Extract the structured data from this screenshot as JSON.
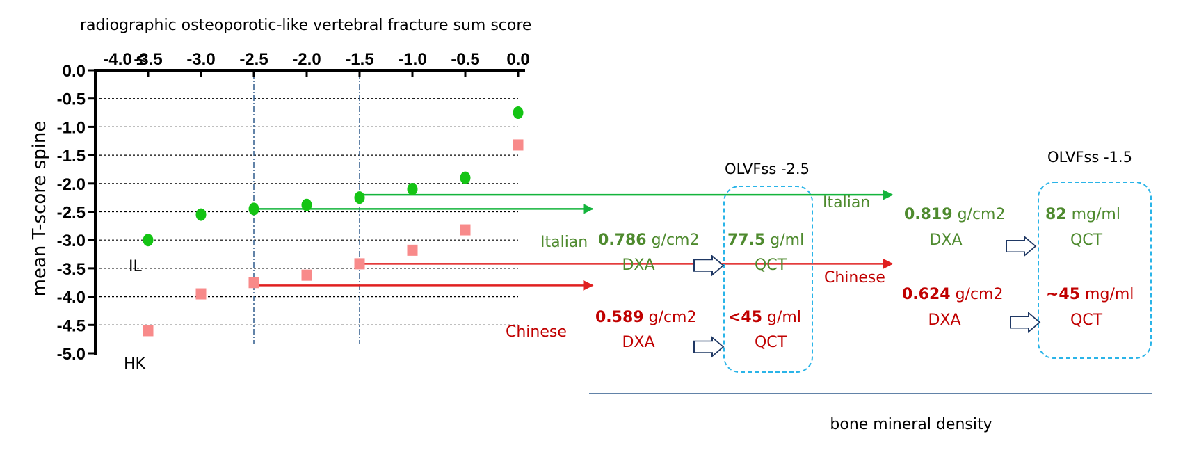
{
  "chart_data": {
    "type": "scatter",
    "title": "radiographic osteoporotic-like vertebral fracture sum score",
    "ylabel": "mean T-score  spine",
    "xlabel": "",
    "xlim": [
      -4.0,
      0.0
    ],
    "ylim": [
      -5.0,
      0.0
    ],
    "x_ticks": [
      "-4.0 ≤",
      "-3.5",
      "-3.0",
      "-2.5",
      "-2.0",
      "-1.5",
      "-1.0",
      "-0.5",
      "0.0"
    ],
    "x_tick_values": [
      -4.0,
      -3.5,
      -3.0,
      -2.5,
      -2.0,
      -1.5,
      -1.0,
      -0.5,
      0.0
    ],
    "y_ticks": [
      "0.0",
      "-0.5",
      "-1.0",
      "-1.5",
      "-2.0",
      "-2.5",
      "-3.0",
      "-3.5",
      "-4.0",
      "-4.5",
      "-5.0"
    ],
    "y_tick_values": [
      0.0,
      -0.5,
      -1.0,
      -1.5,
      -2.0,
      -2.5,
      -3.0,
      -3.5,
      -4.0,
      -4.5,
      -5.0
    ],
    "x_axis_position": "top",
    "grid": "horizontal-dashed",
    "vlines": [
      -2.5,
      -1.5
    ],
    "series": [
      {
        "name": "IL",
        "marker": "circle",
        "color": "#14c414",
        "x": [
          -3.5,
          -3.0,
          -2.5,
          -2.0,
          -1.5,
          -1.0,
          -0.5,
          0.0
        ],
        "y": [
          -3.0,
          -2.55,
          -2.45,
          -2.38,
          -2.25,
          -2.1,
          -1.9,
          -0.75
        ]
      },
      {
        "name": "HK",
        "marker": "square",
        "color": "#f88a8a",
        "x": [
          -3.5,
          -3.0,
          -2.5,
          -2.0,
          -1.5,
          -1.0,
          -0.5,
          0.0
        ],
        "y": [
          -4.6,
          -3.95,
          -3.75,
          -3.62,
          -3.42,
          -3.18,
          -2.82,
          -1.32
        ]
      }
    ],
    "arrows": [
      {
        "from_x": -2.5,
        "y": -2.45,
        "label": "Italian",
        "color": "#14b43c"
      },
      {
        "from_x": -1.5,
        "y": -2.2,
        "label": "Italian",
        "color": "#14b43c"
      },
      {
        "from_x": -1.5,
        "y": -3.42,
        "label": "Chinese",
        "color": "#e02020"
      },
      {
        "from_x": -2.5,
        "y": -3.8,
        "label": "Chinese",
        "color": "#e02020"
      }
    ],
    "colors": {
      "green_text": "#4e8a2e",
      "red_text": "#c00000",
      "box": "#2ab4e8",
      "arrow_outline": "#1f3864",
      "divider": "#2e5a8c"
    }
  },
  "annotations": {
    "olv_25": {
      "title": "OLVFss -2.5",
      "italian": {
        "label": "Italian",
        "dxa_value": "0.786",
        "dxa_unit": " g/cm2",
        "dxa": "DXA",
        "qct_value": "77.5",
        "qct_unit": " g/ml",
        "qct": "QCT"
      },
      "chinese": {
        "label": "Chinese",
        "dxa_value": "0.589",
        "dxa_unit": " g/cm2",
        "dxa": "DXA",
        "qct_value": "<45",
        "qct_unit": " g/ml",
        "qct": "QCT"
      }
    },
    "olv_15": {
      "title": "OLVFss -1.5",
      "italian": {
        "label": "Italian",
        "dxa_value": "0.819",
        "dxa_unit": " g/cm2",
        "dxa": "DXA",
        "qct_value": "82",
        "qct_unit": " mg/ml",
        "qct": "QCT"
      },
      "chinese": {
        "label": "Chinese",
        "dxa_value": "0.624",
        "dxa_unit": " g/cm2",
        "dxa": "DXA",
        "qct_value": "~45",
        "qct_unit": " mg/ml",
        "qct": "QCT"
      }
    },
    "footer": "bone mineral density"
  }
}
